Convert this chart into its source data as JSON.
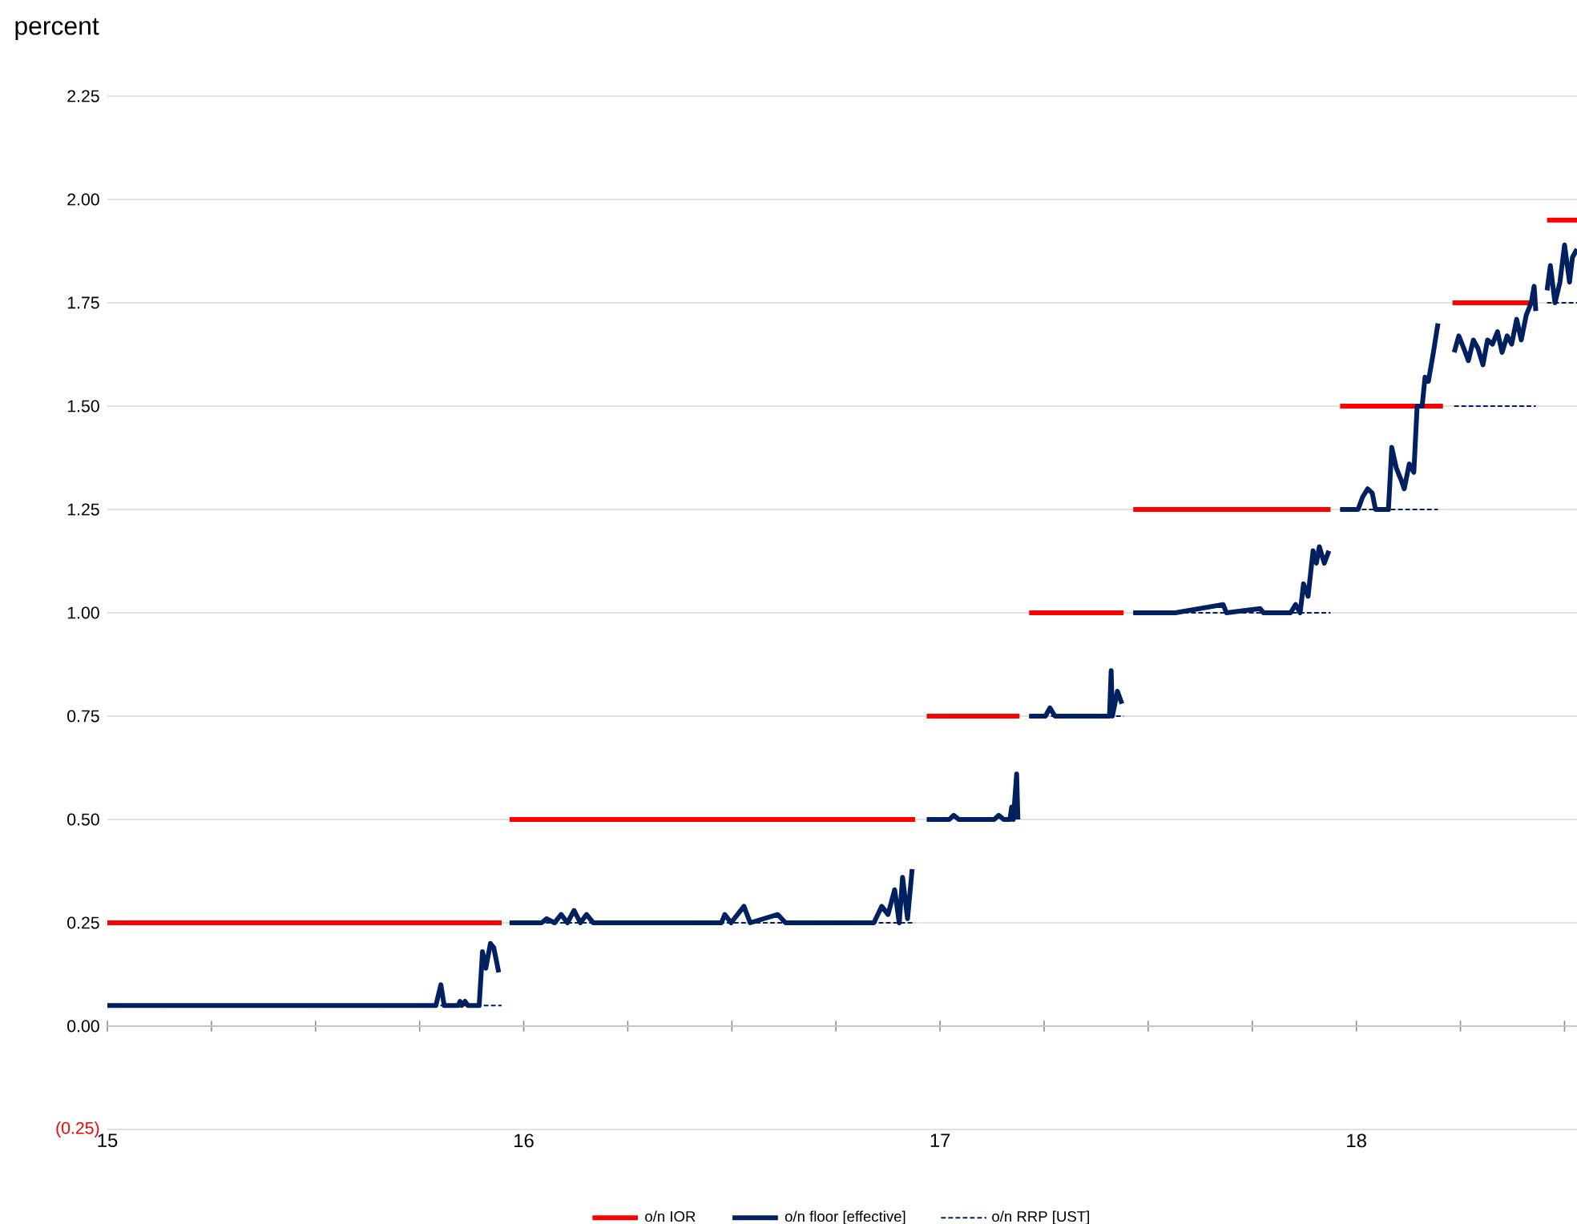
{
  "chart_data": {
    "type": "line",
    "ylabel": "percent",
    "xlim": [
      15,
      18.53
    ],
    "ylim": [
      -0.25,
      2.25
    ],
    "xticks": [
      15,
      {
        "value": 15.25,
        "label": null
      },
      {
        "value": 15.5,
        "label": null
      },
      {
        "value": 15.75,
        "label": null
      },
      16,
      {
        "value": 16.25,
        "label": null
      },
      {
        "value": 16.5,
        "label": null
      },
      {
        "value": 16.75,
        "label": null
      },
      17,
      {
        "value": 17.25,
        "label": null
      },
      {
        "value": 17.5,
        "label": null
      },
      {
        "value": 17.75,
        "label": null
      },
      18,
      {
        "value": 18.25,
        "label": null
      },
      {
        "value": 18.5,
        "label": null
      }
    ],
    "yticks": [
      {
        "value": -0.25,
        "label": "(0.25)"
      },
      {
        "value": 0,
        "label": "0.00"
      },
      {
        "value": 0.25,
        "label": "0.25"
      },
      {
        "value": 0.5,
        "label": "0.50"
      },
      {
        "value": 0.75,
        "label": "0.75"
      },
      {
        "value": 1,
        "label": "1.00"
      },
      {
        "value": 1.25,
        "label": "1.25"
      },
      {
        "value": 1.5,
        "label": "1.50"
      },
      {
        "value": 1.75,
        "label": "1.75"
      },
      {
        "value": 2,
        "label": "2.00"
      },
      {
        "value": 2.25,
        "label": "2.25"
      }
    ],
    "grid": "y",
    "legend": "bottom",
    "marker": "none",
    "series": [
      {
        "name": "o/n IOR",
        "color": "#ff0000",
        "line_style": "solid",
        "x": [
          15.0,
          15.947,
          null,
          15.966,
          16.94,
          null,
          16.968,
          17.191,
          null,
          17.214,
          17.441,
          null,
          17.464,
          17.938,
          null,
          17.961,
          18.208,
          null,
          18.231,
          18.431,
          null,
          18.458,
          18.53
        ],
        "values": [
          0.25,
          0.25,
          null,
          0.5,
          0.5,
          null,
          0.75,
          0.75,
          null,
          1.0,
          1.0,
          null,
          1.25,
          1.25,
          null,
          1.5,
          1.5,
          null,
          1.75,
          1.75,
          null,
          1.95,
          1.95
        ]
      },
      {
        "name": "o/n floor [effective]",
        "color": "#002060",
        "line_style": "solid",
        "x": [
          15.0,
          15.789,
          15.801,
          15.809,
          15.843,
          15.847,
          15.851,
          15.859,
          15.866,
          15.893,
          15.901,
          15.909,
          15.92,
          15.928,
          15.94,
          null,
          15.966,
          16.043,
          16.055,
          16.074,
          16.09,
          16.105,
          16.121,
          16.136,
          16.151,
          16.167,
          16.228,
          16.475,
          16.483,
          16.498,
          16.529,
          16.544,
          16.61,
          16.629,
          16.752,
          16.841,
          16.86,
          16.875,
          16.891,
          16.902,
          16.91,
          16.922,
          16.933,
          null,
          16.968,
          17.022,
          17.033,
          17.045,
          17.13,
          17.141,
          17.153,
          17.168,
          17.172,
          17.176,
          17.184,
          17.187,
          null,
          17.214,
          17.253,
          17.264,
          17.276,
          17.407,
          17.411,
          17.414,
          17.426,
          17.437,
          null,
          17.464,
          17.565,
          17.68,
          17.688,
          17.769,
          17.777,
          17.842,
          17.854,
          17.865,
          17.873,
          17.884,
          17.896,
          17.904,
          17.911,
          17.923,
          17.934,
          null,
          17.961,
          18.004,
          18.015,
          18.027,
          18.038,
          18.046,
          18.077,
          18.085,
          18.096,
          18.108,
          18.115,
          18.127,
          18.138,
          18.146,
          18.158,
          18.165,
          18.173,
          18.185,
          18.196,
          null,
          18.235,
          18.246,
          18.258,
          18.269,
          18.281,
          18.292,
          18.304,
          18.315,
          18.327,
          18.339,
          18.35,
          18.362,
          18.373,
          18.385,
          18.396,
          18.408,
          18.42,
          18.427,
          18.431,
          null,
          18.458,
          18.466,
          18.477,
          18.489,
          18.5,
          18.512,
          18.519,
          18.53
        ],
        "values": [
          0.05,
          0.05,
          0.1,
          0.05,
          0.05,
          0.06,
          0.05,
          0.06,
          0.05,
          0.05,
          0.18,
          0.14,
          0.2,
          0.19,
          0.13,
          null,
          0.25,
          0.25,
          0.26,
          0.25,
          0.27,
          0.25,
          0.28,
          0.25,
          0.27,
          0.25,
          0.25,
          0.25,
          0.27,
          0.25,
          0.29,
          0.25,
          0.27,
          0.25,
          0.25,
          0.25,
          0.29,
          0.27,
          0.33,
          0.25,
          0.36,
          0.26,
          0.38,
          null,
          0.5,
          0.5,
          0.51,
          0.5,
          0.5,
          0.51,
          0.5,
          0.5,
          0.53,
          0.5,
          0.61,
          0.5,
          null,
          0.75,
          0.75,
          0.77,
          0.75,
          0.75,
          0.86,
          0.75,
          0.81,
          0.78,
          null,
          1.0,
          1.0,
          1.02,
          1.0,
          1.01,
          1.0,
          1.0,
          1.02,
          1.0,
          1.07,
          1.04,
          1.15,
          1.12,
          1.16,
          1.12,
          1.15,
          null,
          1.25,
          1.25,
          1.28,
          1.3,
          1.29,
          1.25,
          1.25,
          1.4,
          1.35,
          1.32,
          1.3,
          1.36,
          1.34,
          1.5,
          1.5,
          1.57,
          1.56,
          1.63,
          1.7,
          null,
          1.63,
          1.67,
          1.64,
          1.61,
          1.66,
          1.64,
          1.6,
          1.66,
          1.65,
          1.68,
          1.63,
          1.67,
          1.65,
          1.71,
          1.66,
          1.72,
          1.75,
          1.79,
          1.73,
          null,
          1.78,
          1.84,
          1.75,
          1.8,
          1.89,
          1.8,
          1.86,
          1.88
        ]
      },
      {
        "name": "o/n RRP [UST]",
        "color": "#002060",
        "line_style": "dashed",
        "x": [
          15.0,
          15.947,
          null,
          15.966,
          16.94,
          null,
          17.214,
          17.441,
          null,
          17.464,
          17.938,
          null,
          17.961,
          18.196,
          null,
          18.235,
          18.431,
          null,
          18.458,
          18.53
        ],
        "values": [
          0.05,
          0.05,
          null,
          0.25,
          0.25,
          null,
          0.75,
          0.75,
          null,
          1.0,
          1.0,
          null,
          1.25,
          1.25,
          null,
          1.5,
          1.5,
          null,
          1.75,
          1.75
        ]
      }
    ]
  }
}
